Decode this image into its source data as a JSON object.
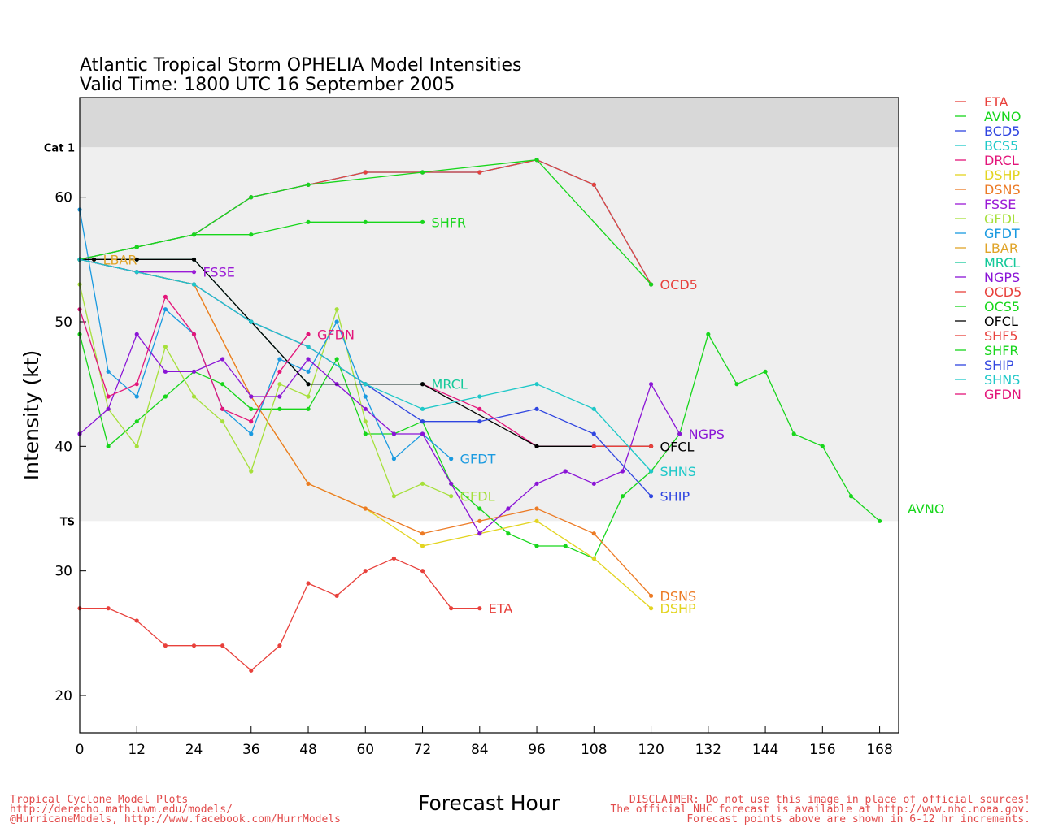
{
  "chart_data": {
    "type": "line",
    "title": "Atlantic Tropical Storm OPHELIA Model Intensities",
    "subtitle": "Valid Time: 1800 UTC 16 September 2005",
    "xlabel": "Forecast Hour",
    "ylabel": "Intensity (kt)",
    "xlim": [
      0,
      172
    ],
    "ylim": [
      17,
      68
    ],
    "xticks": [
      0,
      12,
      24,
      36,
      48,
      60,
      72,
      84,
      96,
      108,
      120,
      132,
      144,
      156,
      168
    ],
    "yticks": [
      20,
      30,
      40,
      50,
      60
    ],
    "bands": [
      {
        "label": "Cat 1",
        "y": 64,
        "color": "#d8d8d8"
      },
      {
        "label": "TS",
        "y": 34,
        "color": "#efefef"
      }
    ],
    "legend_position": "right",
    "series": [
      {
        "name": "ETA",
        "color": "#e8413c",
        "end_label": "ETA",
        "points": [
          [
            0,
            27
          ],
          [
            6,
            27
          ],
          [
            12,
            26
          ],
          [
            18,
            24
          ],
          [
            24,
            24
          ],
          [
            30,
            24
          ],
          [
            36,
            22
          ],
          [
            42,
            24
          ],
          [
            48,
            29
          ],
          [
            54,
            28
          ],
          [
            60,
            30
          ],
          [
            66,
            31
          ],
          [
            72,
            30
          ],
          [
            78,
            27
          ],
          [
            84,
            27
          ]
        ]
      },
      {
        "name": "AVNO",
        "color": "#17d61b",
        "end_label": "AVNO",
        "points": [
          [
            0,
            49
          ],
          [
            6,
            40
          ],
          [
            12,
            42
          ],
          [
            18,
            44
          ],
          [
            24,
            46
          ],
          [
            30,
            45
          ],
          [
            36,
            43
          ],
          [
            42,
            43
          ],
          [
            48,
            43
          ],
          [
            54,
            47
          ],
          [
            60,
            41
          ],
          [
            66,
            41
          ],
          [
            72,
            42
          ],
          [
            78,
            37
          ],
          [
            84,
            35
          ],
          [
            90,
            33
          ],
          [
            96,
            32
          ],
          [
            102,
            32
          ],
          [
            108,
            31
          ],
          [
            114,
            36
          ],
          [
            120,
            38
          ],
          [
            126,
            41
          ],
          [
            132,
            49
          ],
          [
            138,
            45
          ],
          [
            144,
            46
          ],
          [
            150,
            41
          ],
          [
            156,
            40
          ],
          [
            162,
            36
          ],
          [
            168,
            34
          ],
          [
            174,
            35
          ]
        ]
      },
      {
        "name": "BCD5",
        "color": "#2f45e0",
        "end_label": "",
        "points": [
          [
            0,
            55
          ],
          [
            12,
            56
          ],
          [
            24,
            57
          ],
          [
            36,
            60
          ],
          [
            48,
            61
          ],
          [
            60,
            62
          ],
          [
            72,
            62
          ],
          [
            84,
            62
          ],
          [
            96,
            63
          ],
          [
            108,
            61
          ],
          [
            120,
            53
          ]
        ]
      },
      {
        "name": "BCS5",
        "color": "#1ec8c8",
        "end_label": "",
        "points": [
          [
            0,
            55
          ],
          [
            12,
            56
          ],
          [
            24,
            57
          ],
          [
            36,
            60
          ],
          [
            48,
            61
          ],
          [
            60,
            62
          ],
          [
            72,
            62
          ],
          [
            84,
            62
          ],
          [
            96,
            63
          ],
          [
            108,
            61
          ],
          [
            120,
            53
          ]
        ]
      },
      {
        "name": "DRCL",
        "color": "#e3157a",
        "end_label": "",
        "points": [
          [
            0,
            55
          ],
          [
            12,
            54
          ],
          [
            24,
            53
          ],
          [
            36,
            50
          ],
          [
            48,
            48
          ],
          [
            60,
            45
          ],
          [
            72,
            45
          ],
          [
            84,
            43
          ],
          [
            96,
            40
          ],
          [
            108,
            40
          ],
          [
            120,
            40
          ]
        ]
      },
      {
        "name": "DSHP",
        "color": "#e3d420",
        "end_label": "DSHP",
        "points": [
          [
            0,
            55
          ],
          [
            12,
            54
          ],
          [
            24,
            53
          ],
          [
            36,
            44
          ],
          [
            48,
            37
          ],
          [
            60,
            35
          ],
          [
            72,
            32
          ],
          [
            84,
            33
          ],
          [
            96,
            34
          ],
          [
            108,
            31
          ],
          [
            120,
            27
          ]
        ]
      },
      {
        "name": "DSNS",
        "color": "#ec7a24",
        "end_label": "DSNS",
        "points": [
          [
            0,
            55
          ],
          [
            12,
            54
          ],
          [
            24,
            53
          ],
          [
            36,
            44
          ],
          [
            48,
            37
          ],
          [
            60,
            35
          ],
          [
            72,
            33
          ],
          [
            84,
            34
          ],
          [
            96,
            35
          ],
          [
            108,
            33
          ],
          [
            120,
            28
          ]
        ]
      },
      {
        "name": "FSSE",
        "color": "#9a1ad6",
        "end_label": "FSSE",
        "points": [
          [
            0,
            55
          ],
          [
            12,
            54
          ],
          [
            24,
            54
          ]
        ]
      },
      {
        "name": "GFDL",
        "color": "#a6e03a",
        "end_label": "GFDL",
        "points": [
          [
            0,
            53
          ],
          [
            6,
            43
          ],
          [
            12,
            40
          ],
          [
            18,
            48
          ],
          [
            24,
            44
          ],
          [
            30,
            42
          ],
          [
            36,
            38
          ],
          [
            42,
            45
          ],
          [
            48,
            44
          ],
          [
            54,
            51
          ],
          [
            60,
            42
          ],
          [
            66,
            36
          ],
          [
            72,
            37
          ],
          [
            78,
            36
          ]
        ]
      },
      {
        "name": "GFDT",
        "color": "#1a9ae0",
        "end_label": "GFDT",
        "points": [
          [
            0,
            59
          ],
          [
            6,
            46
          ],
          [
            12,
            44
          ],
          [
            18,
            51
          ],
          [
            24,
            49
          ],
          [
            30,
            43
          ],
          [
            36,
            41
          ],
          [
            42,
            47
          ],
          [
            48,
            46
          ],
          [
            54,
            50
          ],
          [
            60,
            44
          ],
          [
            66,
            39
          ],
          [
            72,
            41
          ],
          [
            78,
            39
          ]
        ]
      },
      {
        "name": "LBAR",
        "color": "#e0a428",
        "end_label": "LBAR",
        "points": [
          [
            0,
            55
          ],
          [
            3,
            55
          ]
        ]
      },
      {
        "name": "MRCL",
        "color": "#15c99a",
        "end_label": "MRCL",
        "points": [
          [
            0,
            55
          ],
          [
            12,
            55
          ],
          [
            24,
            55
          ],
          [
            36,
            50
          ],
          [
            48,
            45
          ],
          [
            60,
            45
          ],
          [
            72,
            45
          ]
        ]
      },
      {
        "name": "NGPS",
        "color": "#8a14d6",
        "end_label": "NGPS",
        "points": [
          [
            0,
            41
          ],
          [
            6,
            43
          ],
          [
            12,
            49
          ],
          [
            18,
            46
          ],
          [
            24,
            46
          ],
          [
            30,
            47
          ],
          [
            36,
            44
          ],
          [
            42,
            44
          ],
          [
            48,
            47
          ],
          [
            54,
            45
          ],
          [
            60,
            43
          ],
          [
            66,
            41
          ],
          [
            72,
            41
          ],
          [
            78,
            37
          ],
          [
            84,
            33
          ],
          [
            90,
            35
          ],
          [
            96,
            37
          ],
          [
            102,
            38
          ],
          [
            108,
            37
          ],
          [
            114,
            38
          ],
          [
            120,
            45
          ],
          [
            126,
            41
          ]
        ]
      },
      {
        "name": "OCD5",
        "color": "#e8413c",
        "end_label": "OCD5",
        "points": [
          [
            0,
            55
          ],
          [
            12,
            56
          ],
          [
            24,
            57
          ],
          [
            36,
            60
          ],
          [
            48,
            61
          ],
          [
            60,
            62
          ],
          [
            72,
            62
          ],
          [
            84,
            62
          ],
          [
            96,
            63
          ],
          [
            108,
            61
          ],
          [
            120,
            53
          ]
        ]
      },
      {
        "name": "OCS5",
        "color": "#17d61b",
        "end_label": "",
        "points": [
          [
            0,
            55
          ],
          [
            12,
            56
          ],
          [
            24,
            57
          ],
          [
            36,
            60
          ],
          [
            48,
            61
          ],
          [
            72,
            62
          ],
          [
            96,
            63
          ],
          [
            120,
            53
          ]
        ]
      },
      {
        "name": "OFCL",
        "color": "#000000",
        "end_label": "OFCL",
        "points": [
          [
            0,
            55
          ],
          [
            3,
            55
          ],
          [
            12,
            55
          ],
          [
            24,
            55
          ],
          [
            36,
            50
          ],
          [
            48,
            45
          ],
          [
            72,
            45
          ],
          [
            96,
            40
          ],
          [
            120,
            40
          ]
        ]
      },
      {
        "name": "SHF5",
        "color": "#e8413c",
        "end_label": "",
        "points": [
          [
            108,
            40
          ],
          [
            120,
            40
          ]
        ]
      },
      {
        "name": "SHFR",
        "color": "#17d61b",
        "end_label": "SHFR",
        "points": [
          [
            0,
            55
          ],
          [
            12,
            56
          ],
          [
            24,
            57
          ],
          [
            36,
            57
          ],
          [
            48,
            58
          ],
          [
            60,
            58
          ],
          [
            72,
            58
          ]
        ]
      },
      {
        "name": "SHIP",
        "color": "#2f45e0",
        "end_label": "SHIP",
        "points": [
          [
            0,
            55
          ],
          [
            12,
            54
          ],
          [
            24,
            53
          ],
          [
            36,
            50
          ],
          [
            48,
            48
          ],
          [
            60,
            45
          ],
          [
            72,
            42
          ],
          [
            84,
            42
          ],
          [
            96,
            43
          ],
          [
            108,
            41
          ],
          [
            120,
            36
          ]
        ]
      },
      {
        "name": "SHNS",
        "color": "#1ec8c8",
        "end_label": "SHNS",
        "points": [
          [
            0,
            55
          ],
          [
            12,
            54
          ],
          [
            24,
            53
          ],
          [
            36,
            50
          ],
          [
            48,
            48
          ],
          [
            60,
            45
          ],
          [
            72,
            43
          ],
          [
            84,
            44
          ],
          [
            96,
            45
          ],
          [
            108,
            43
          ],
          [
            120,
            38
          ]
        ]
      },
      {
        "name": "GFDN",
        "color": "#e3157a",
        "end_label": "GFDN",
        "points": [
          [
            0,
            51
          ],
          [
            6,
            44
          ],
          [
            12,
            45
          ],
          [
            18,
            52
          ],
          [
            24,
            49
          ],
          [
            30,
            43
          ],
          [
            36,
            42
          ],
          [
            42,
            46
          ],
          [
            48,
            49
          ]
        ]
      }
    ]
  },
  "footer": {
    "left_line1": "Tropical Cyclone Model Plots",
    "left_line2": "http://derecho.math.uwm.edu/models/",
    "left_line3": "@HurricaneModels, http://www.facebook.com/HurrModels",
    "right_line1": "DISCLAIMER: Do not use this image in place of official sources!",
    "right_line2": "The official NHC forecast is available at http://www.nhc.noaa.gov.",
    "right_line3": "Forecast points above are shown in 6-12 hr increments."
  }
}
